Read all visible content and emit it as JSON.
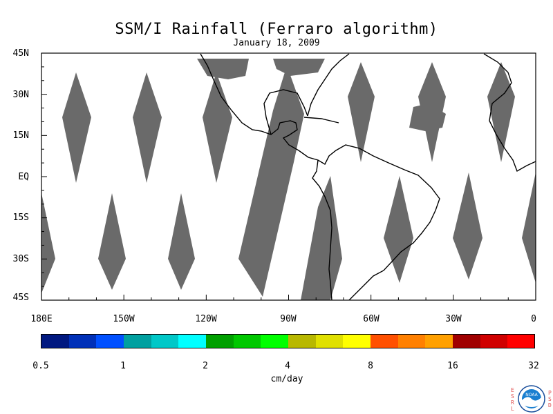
{
  "title": "SSM/I Rainfall (Ferraro algorithm)",
  "subtitle": "January 18, 2009",
  "map": {
    "lat_labels": [
      "45N",
      "30N",
      "15N",
      "EQ",
      "15S",
      "30S",
      "45S"
    ],
    "lon_labels": [
      "180E",
      "150W",
      "120W",
      "90W",
      "60W",
      "30W",
      "0"
    ],
    "no_data_color": "#6a6a6a",
    "coast_color": "#000000"
  },
  "colorbar": {
    "colors": [
      "#001880",
      "#0030b8",
      "#0050ff",
      "#00a0a0",
      "#00c8c8",
      "#00ffff",
      "#00a000",
      "#00c800",
      "#00ff00",
      "#b8b800",
      "#e0e000",
      "#ffff00",
      "#ff5000",
      "#ff8000",
      "#ffa000",
      "#a00000",
      "#d00000",
      "#ff0000"
    ],
    "tick_labels": [
      "0.5",
      "1",
      "2",
      "4",
      "8",
      "16",
      "32"
    ],
    "units": "cm/day"
  },
  "logo": {
    "left_letters": [
      "E",
      "S",
      "R",
      "L"
    ],
    "right_letters": [
      "P",
      "S",
      "D"
    ],
    "badge_text": "NOAA"
  }
}
